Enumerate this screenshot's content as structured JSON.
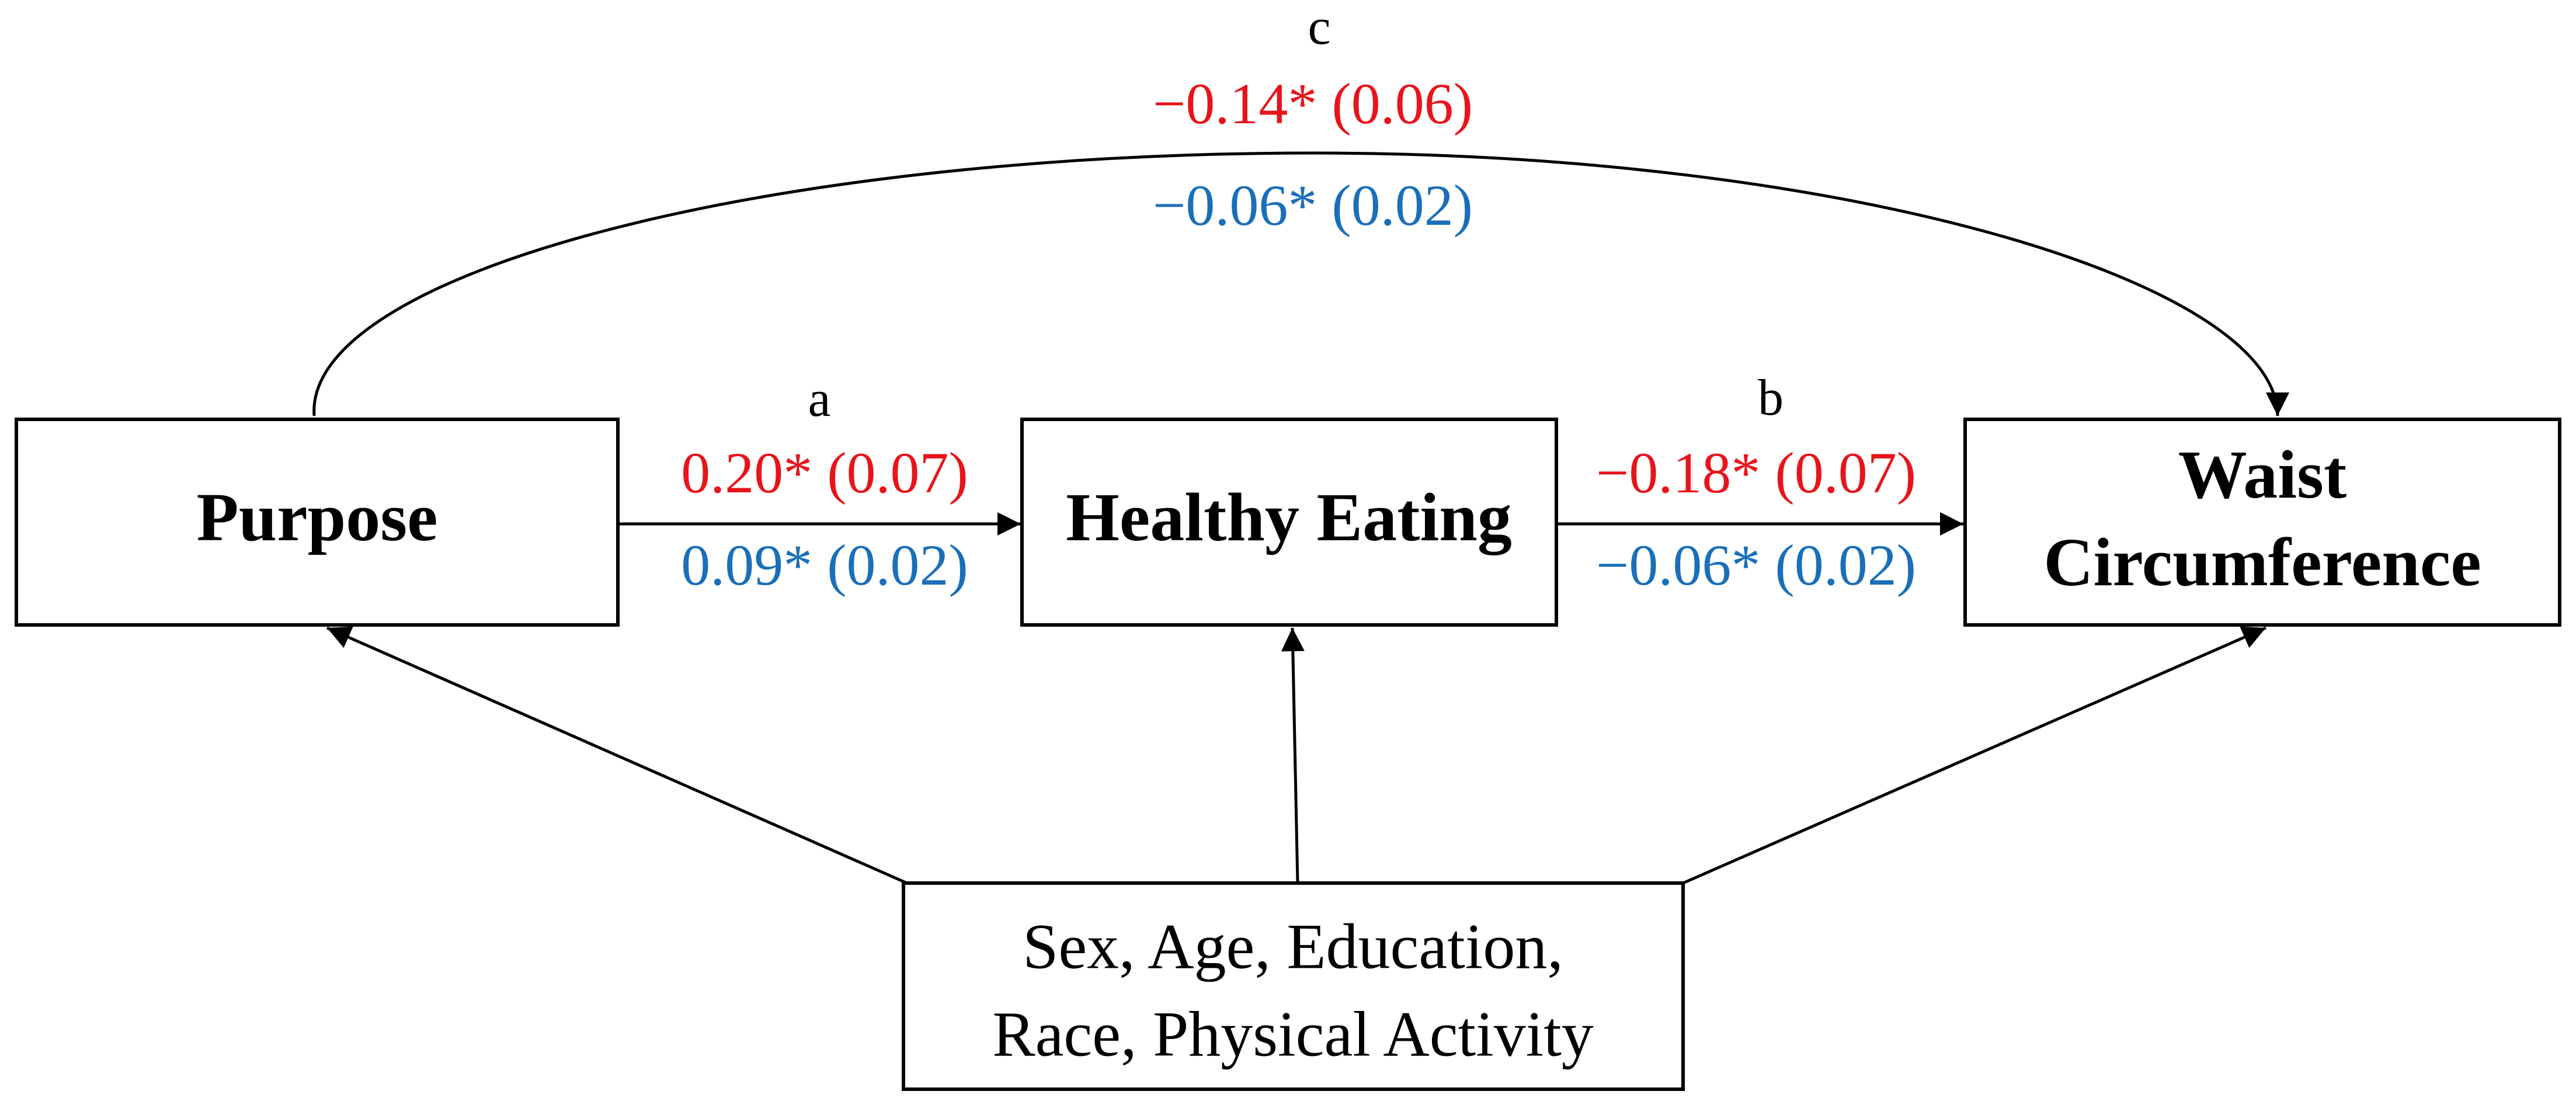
{
  "colors": {
    "coef_red": "#e8141b",
    "coef_blue": "#1a6fb8",
    "line": "#000000"
  },
  "nodes": {
    "purpose": "Purpose",
    "healthy_eating": "Healthy Eating",
    "waist": [
      "Waist",
      "Circumference"
    ],
    "covariates": [
      "Sex, Age, Education,",
      "Race, Physical Activity"
    ]
  },
  "paths": {
    "a": {
      "letter": "a",
      "red": "0.20* (0.07)",
      "blue": "0.09* (0.02)"
    },
    "b": {
      "letter": "b",
      "red": "−0.18* (0.07)",
      "blue": "−0.06* (0.02)"
    },
    "c": {
      "letter": "c",
      "red": "−0.14* (0.06)",
      "blue": "−0.06* (0.02)"
    }
  }
}
